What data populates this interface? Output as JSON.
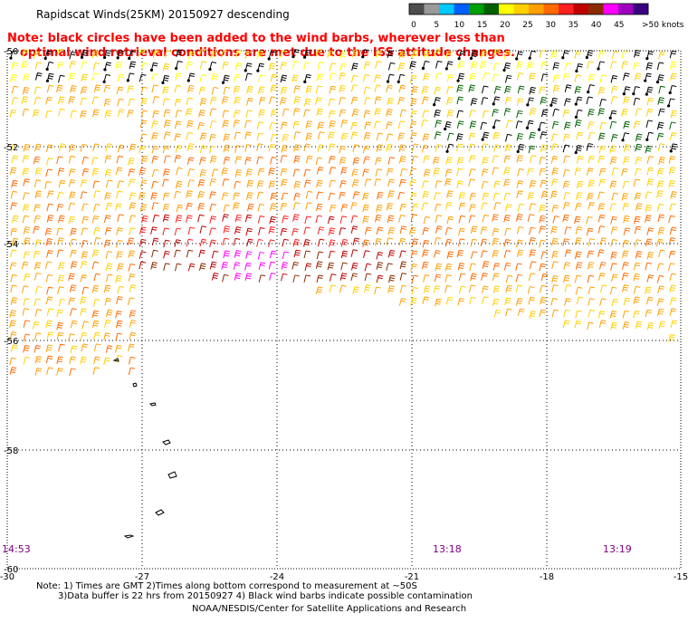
{
  "title": "Rapidscat Winds(25KM) 20150927 descending",
  "note_line1": "Note: black circles have been added to the wind barbs, wherever less than",
  "note_line2": "optimal wind retrieval conditions are met due to the ISS attitude changes.",
  "legend": {
    "ticks": [
      "0",
      "5",
      "10",
      "15",
      "20",
      "25",
      "30",
      "35",
      "40",
      "45",
      ">50 knots"
    ],
    "colors": [
      "#4d4d4d",
      "#9a9a9a",
      "#00c8ff",
      "#0060ff",
      "#00a000",
      "#006000",
      "#ffff00",
      "#ffd000",
      "#ffa000",
      "#ff6a00",
      "#ff2020",
      "#c00000",
      "#8b2a00",
      "#ff00ff",
      "#a000c0",
      "#3a0080"
    ]
  },
  "map": {
    "lon_labels": [
      "-30",
      "-27",
      "-24",
      "-21",
      "-18",
      "-15"
    ],
    "lat_labels": [
      "-50",
      "-52",
      "-54",
      "-56",
      "-58",
      "-60"
    ],
    "lon_range": [
      -30,
      -15
    ],
    "lat_range": [
      -60,
      -50
    ],
    "grid": "dotted",
    "time_labels": [
      "14:53",
      "13:18",
      "13:19"
    ]
  },
  "footer": {
    "line1": "Note: 1) Times are GMT 2)Times along bottom correspond to measurement at ~50S",
    "line2": "3)Data buffer is 22 hrs from 20150927 4) Black wind barbs indicate possible contamination",
    "line3": "NOAA/NESDIS/Center for Satellite Applications and Research"
  },
  "colors": {
    "note": "#ff0000",
    "time": "#800080",
    "grid": "#000000"
  }
}
